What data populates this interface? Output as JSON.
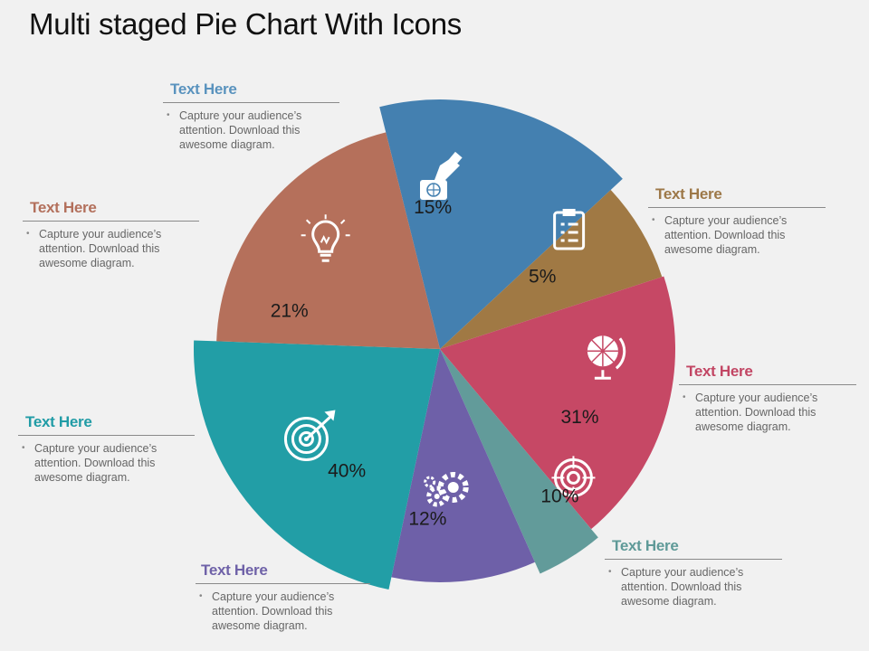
{
  "title": "Multi staged Pie Chart With Icons",
  "chart_data": {
    "type": "pie",
    "title": "Multi staged Pie Chart With Icons",
    "slices": [
      {
        "key": "s15",
        "label": "15%",
        "value": 15,
        "color": "#4480b0",
        "icon": "credit-card-hand-icon"
      },
      {
        "key": "s5",
        "label": "5%",
        "value": 5,
        "color": "#a07944",
        "icon": "clipboard-icon"
      },
      {
        "key": "s31",
        "label": "31%",
        "value": 31,
        "color": "#c64865",
        "icon": "globe-icon"
      },
      {
        "key": "s10",
        "label": "10%",
        "value": 10,
        "color": "#629b9a",
        "icon": "target-icon"
      },
      {
        "key": "s12",
        "label": "12%",
        "value": 12,
        "color": "#6e60a8",
        "icon": "gears-icon"
      },
      {
        "key": "s40",
        "label": "40%",
        "value": 40,
        "color": "#229ea6",
        "icon": "bullseye-arrow-icon"
      },
      {
        "key": "s21",
        "label": "21%",
        "value": 21,
        "color": "#b5705b",
        "icon": "lightbulb-icon"
      }
    ]
  },
  "callouts": [
    {
      "title": "Text Here",
      "text": "Capture your audience’s attention. Download this awesome diagram.",
      "color": "#5a93be"
    },
    {
      "title": "Text Here",
      "text": "Capture your audience’s attention. Download this awesome diagram.",
      "color": "#b3705c"
    },
    {
      "title": "Text Here",
      "text": "Capture your audience’s attention. Download this awesome diagram.",
      "color": "#219ca6"
    },
    {
      "title": "Text Here",
      "text": "Capture your audience’s attention. Download this awesome diagram.",
      "color": "#6f62a8"
    },
    {
      "title": "Text Here",
      "text": "Capture your audience’s attention. Download this awesome diagram.",
      "color": "#5f9a98"
    },
    {
      "title": "Text Here",
      "text": "Capture your audience’s attention. Download this awesome diagram.",
      "color": "#c24664"
    },
    {
      "title": "Text Here",
      "text": "Capture your audience’s attention. Download this awesome diagram.",
      "color": "#9d7848"
    }
  ]
}
